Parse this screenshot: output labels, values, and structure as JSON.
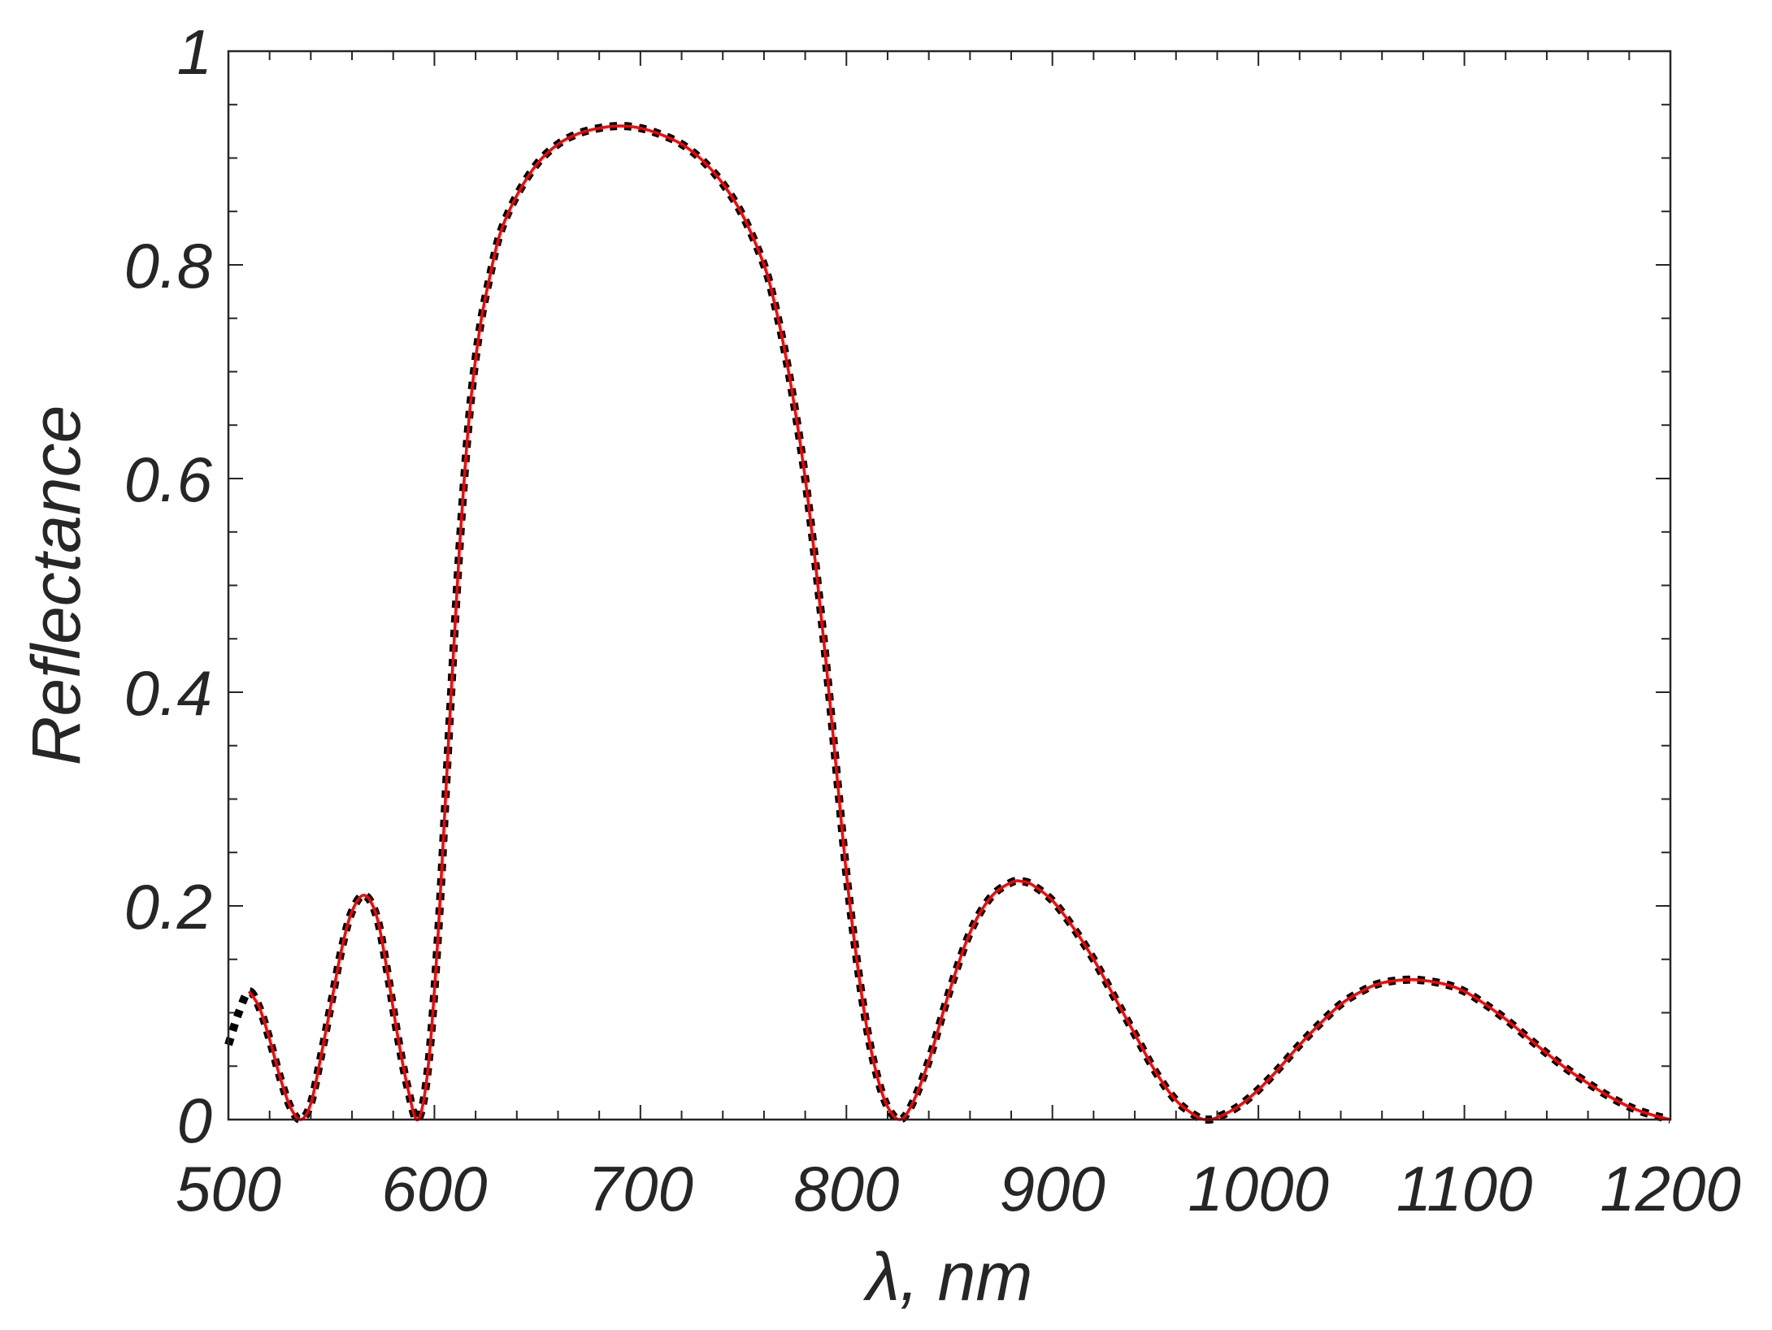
{
  "chart_data": {
    "type": "line",
    "title": "",
    "xlabel": "λ, nm",
    "ylabel": "Reflectance",
    "xlim": [
      500,
      1200
    ],
    "ylim": [
      0,
      1
    ],
    "xticks": [
      500,
      600,
      700,
      800,
      900,
      1000,
      1100,
      1200
    ],
    "xtick_labels": [
      "500",
      "600",
      "700",
      "800",
      "900",
      "1000",
      "1100",
      "1200"
    ],
    "yticks": [
      0,
      0.2,
      0.4,
      0.6,
      0.8,
      1
    ],
    "ytick_labels": [
      "0",
      "0.2",
      "0.4",
      "0.6",
      "0.8",
      "1"
    ],
    "x_minor_step": 20,
    "y_minor_step": 0.05,
    "grid": false,
    "box": true,
    "series": [
      {
        "style": "dotted",
        "color": "#000000",
        "x": [
          500,
          505,
          510,
          515,
          520,
          525,
          530,
          535,
          540,
          545,
          550,
          555,
          560,
          566,
          572,
          577,
          582,
          587,
          592,
          597,
          602,
          607,
          612,
          617,
          622,
          627,
          632,
          640,
          650,
          660,
          670,
          680,
          690,
          700,
          710,
          720,
          730,
          740,
          750,
          760,
          765,
          770,
          775,
          780,
          785,
          790,
          795,
          800,
          805,
          810,
          815,
          820,
          826,
          832,
          840,
          850,
          860,
          870,
          880,
          885,
          890,
          900,
          910,
          920,
          930,
          940,
          950,
          960,
          970,
          975,
          980,
          990,
          1000,
          1010,
          1020,
          1030,
          1040,
          1050,
          1060,
          1075,
          1090,
          1100,
          1110,
          1120,
          1130,
          1140,
          1150,
          1160,
          1170,
          1180,
          1190,
          1200
        ],
        "y": [
          0.07,
          0.1,
          0.12,
          0.105,
          0.075,
          0.04,
          0.012,
          0,
          0.015,
          0.06,
          0.11,
          0.16,
          0.195,
          0.21,
          0.19,
          0.14,
          0.08,
          0.03,
          0,
          0.05,
          0.18,
          0.36,
          0.53,
          0.66,
          0.74,
          0.79,
          0.83,
          0.865,
          0.895,
          0.913,
          0.923,
          0.928,
          0.93,
          0.928,
          0.922,
          0.913,
          0.898,
          0.876,
          0.845,
          0.8,
          0.765,
          0.72,
          0.665,
          0.6,
          0.52,
          0.43,
          0.33,
          0.23,
          0.15,
          0.085,
          0.04,
          0.012,
          0,
          0.015,
          0.055,
          0.12,
          0.175,
          0.208,
          0.222,
          0.223,
          0.22,
          0.205,
          0.18,
          0.15,
          0.115,
          0.08,
          0.045,
          0.018,
          0.003,
          0,
          0.002,
          0.012,
          0.028,
          0.048,
          0.07,
          0.09,
          0.108,
          0.12,
          0.128,
          0.131,
          0.127,
          0.12,
          0.108,
          0.094,
          0.078,
          0.062,
          0.047,
          0.034,
          0.022,
          0.012,
          0.005,
          0
        ]
      },
      {
        "style": "solid",
        "color": "#ff0000",
        "x": [
          510,
          515,
          520,
          525,
          530,
          535,
          540,
          545,
          550,
          555,
          560,
          566,
          572,
          577,
          582,
          587,
          592,
          597,
          602,
          607,
          612,
          617,
          622,
          627,
          632,
          640,
          650,
          660,
          670,
          680,
          690,
          700,
          710,
          720,
          730,
          740,
          750,
          760,
          765,
          770,
          775,
          780,
          785,
          790,
          795,
          800,
          805,
          810,
          815,
          820,
          826,
          832,
          840,
          850,
          860,
          870,
          880,
          885,
          890,
          900,
          910,
          920,
          930,
          940,
          950,
          960,
          970,
          975,
          980,
          990,
          1000,
          1010,
          1020,
          1030,
          1040,
          1050,
          1060,
          1075,
          1090,
          1100,
          1110,
          1120,
          1130,
          1140,
          1150,
          1160,
          1170,
          1180,
          1190,
          1200
        ],
        "y": [
          0.12,
          0.105,
          0.075,
          0.04,
          0.012,
          0,
          0.015,
          0.06,
          0.11,
          0.16,
          0.195,
          0.21,
          0.19,
          0.14,
          0.08,
          0.03,
          0,
          0.05,
          0.18,
          0.36,
          0.53,
          0.66,
          0.74,
          0.79,
          0.83,
          0.865,
          0.895,
          0.913,
          0.923,
          0.928,
          0.93,
          0.928,
          0.922,
          0.913,
          0.898,
          0.876,
          0.845,
          0.8,
          0.765,
          0.72,
          0.665,
          0.6,
          0.52,
          0.43,
          0.33,
          0.23,
          0.15,
          0.085,
          0.04,
          0.012,
          0,
          0.015,
          0.055,
          0.12,
          0.175,
          0.208,
          0.222,
          0.223,
          0.22,
          0.205,
          0.18,
          0.15,
          0.115,
          0.08,
          0.045,
          0.018,
          0.003,
          0,
          0.002,
          0.012,
          0.028,
          0.048,
          0.07,
          0.09,
          0.108,
          0.12,
          0.128,
          0.131,
          0.127,
          0.12,
          0.108,
          0.094,
          0.078,
          0.062,
          0.047,
          0.034,
          0.022,
          0.012,
          0.005,
          0
        ]
      }
    ]
  }
}
